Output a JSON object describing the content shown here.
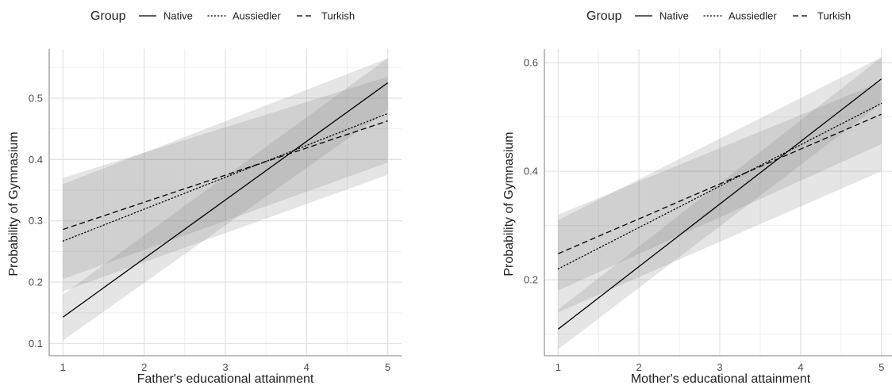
{
  "chart_data": [
    {
      "type": "line",
      "legend": {
        "title": "Group",
        "position": "top"
      },
      "xlabel": "Father's educational attainment",
      "ylabel": "Probability of Gymnasium",
      "xlim": [
        0.83,
        5.17
      ],
      "ylim": [
        0.08,
        0.58
      ],
      "xticks": [
        1,
        2,
        3,
        4,
        5
      ],
      "yticks": [
        0.1,
        0.2,
        0.3,
        0.4,
        0.5
      ],
      "grid": true,
      "series": [
        {
          "name": "Native",
          "linestyle": "solid",
          "x": [
            1,
            5
          ],
          "y": [
            0.143,
            0.525
          ],
          "lower": [
            0.105,
            0.48
          ],
          "upper": [
            0.18,
            0.565
          ]
        },
        {
          "name": "Aussiedler",
          "linestyle": "dotted",
          "x": [
            1,
            5
          ],
          "y": [
            0.267,
            0.475
          ],
          "lower": [
            0.185,
            0.375
          ],
          "upper": [
            0.36,
            0.565
          ]
        },
        {
          "name": "Turkish",
          "linestyle": "dashed",
          "x": [
            1,
            5
          ],
          "y": [
            0.286,
            0.463
          ],
          "lower": [
            0.205,
            0.395
          ],
          "upper": [
            0.37,
            0.535
          ]
        }
      ]
    },
    {
      "type": "line",
      "legend": {
        "title": "Group",
        "position": "top"
      },
      "xlabel": "Mother's educational attainment",
      "ylabel": "Probability of Gymnasium",
      "xlim": [
        0.83,
        5.17
      ],
      "ylim": [
        0.06,
        0.625
      ],
      "xticks": [
        1,
        2,
        3,
        4,
        5
      ],
      "yticks": [
        0.2,
        0.4,
        0.6
      ],
      "grid": true,
      "series": [
        {
          "name": "Native",
          "linestyle": "solid",
          "x": [
            1,
            5
          ],
          "y": [
            0.109,
            0.57
          ],
          "lower": [
            0.072,
            0.525
          ],
          "upper": [
            0.145,
            0.61
          ]
        },
        {
          "name": "Aussiedler",
          "linestyle": "dotted",
          "x": [
            1,
            5
          ],
          "y": [
            0.22,
            0.525
          ],
          "lower": [
            0.14,
            0.4
          ],
          "upper": [
            0.31,
            0.61
          ]
        },
        {
          "name": "Turkish",
          "linestyle": "dashed",
          "x": [
            1,
            5
          ],
          "y": [
            0.248,
            0.505
          ],
          "lower": [
            0.18,
            0.45
          ],
          "upper": [
            0.32,
            0.565
          ]
        }
      ]
    }
  ]
}
